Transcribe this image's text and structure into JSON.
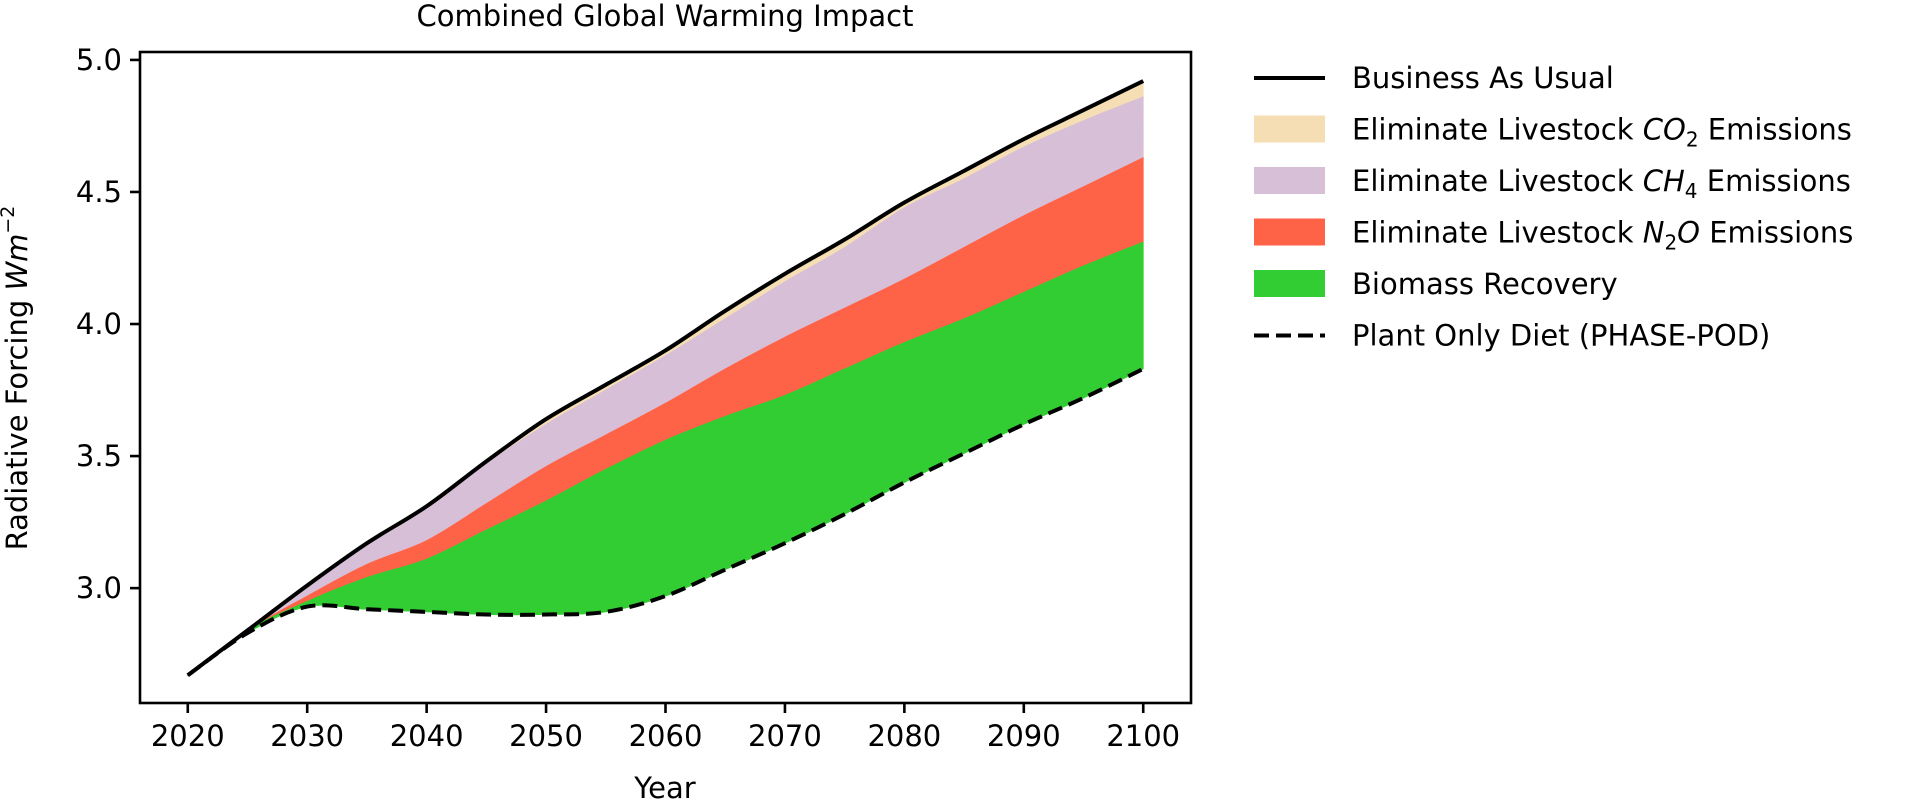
{
  "chart_data": {
    "type": "area",
    "title": "Combined Global Warming Impact",
    "xlabel": "Year",
    "ylabel": "Radiative Forcing Wm⁻²",
    "ylabel_parts": {
      "text": "Radiative Forcing ",
      "unit": "Wm",
      "exp": "−2"
    },
    "xlim": [
      2016,
      2104
    ],
    "ylim": [
      2.565,
      5.03
    ],
    "xticks": [
      2020,
      2030,
      2040,
      2050,
      2060,
      2070,
      2080,
      2090,
      2100
    ],
    "yticks": [
      3.0,
      3.5,
      4.0,
      4.5,
      5.0
    ],
    "xtick_labels": [
      "2020",
      "2030",
      "2040",
      "2050",
      "2060",
      "2070",
      "2080",
      "2090",
      "2100"
    ],
    "ytick_labels": [
      "3.0",
      "3.5",
      "4.0",
      "4.5",
      "5.0"
    ],
    "grid": false,
    "legend_position": "outside-right-top",
    "x": [
      2020,
      2025,
      2030,
      2035,
      2040,
      2045,
      2050,
      2055,
      2060,
      2065,
      2070,
      2075,
      2080,
      2085,
      2090,
      2095,
      2100
    ],
    "series": [
      {
        "name": "Business As Usual",
        "kind": "line",
        "style": "solid",
        "color": "#000000",
        "values": [
          2.67,
          2.84,
          3.01,
          3.17,
          3.31,
          3.48,
          3.64,
          3.77,
          3.9,
          4.05,
          4.19,
          4.32,
          4.46,
          4.58,
          4.7,
          4.81,
          4.92
        ]
      },
      {
        "name": "Eliminate Livestock CO2 Emissions",
        "kind": "band",
        "color": "#F5DEB3",
        "upper": "Business As Usual",
        "lower_values": [
          2.67,
          2.84,
          3.0,
          3.16,
          3.3,
          3.47,
          3.62,
          3.75,
          3.88,
          4.02,
          4.16,
          4.29,
          4.44,
          4.55,
          4.67,
          4.77,
          4.86
        ]
      },
      {
        "name": "Eliminate Livestock CH4 Emissions",
        "kind": "band",
        "color": "#D8BFD8",
        "lower_values": [
          2.67,
          2.84,
          2.97,
          3.09,
          3.18,
          3.32,
          3.46,
          3.58,
          3.7,
          3.83,
          3.95,
          4.06,
          4.17,
          4.29,
          4.41,
          4.52,
          4.63
        ]
      },
      {
        "name": "Eliminate Livestock N2O Emissions",
        "kind": "band",
        "color": "#FF6347",
        "lower_values": [
          2.67,
          2.84,
          2.95,
          3.04,
          3.11,
          3.22,
          3.33,
          3.45,
          3.56,
          3.65,
          3.73,
          3.83,
          3.93,
          4.02,
          4.12,
          4.22,
          4.31
        ]
      },
      {
        "name": "Biomass Recovery",
        "kind": "band",
        "color": "#32CD32",
        "lower": "Plant Only Diet (PHASE-POD)"
      },
      {
        "name": "Plant Only Diet (PHASE-POD)",
        "kind": "line",
        "style": "dashed",
        "color": "#000000",
        "values": [
          2.67,
          2.83,
          2.93,
          2.92,
          2.91,
          2.9,
          2.9,
          2.91,
          2.97,
          3.07,
          3.17,
          3.28,
          3.4,
          3.51,
          3.62,
          3.72,
          3.83
        ]
      }
    ]
  },
  "legend": [
    {
      "kind": "line",
      "style": "solid",
      "color": "#000000",
      "pre": "Business As Usual",
      "chem": "",
      "sub": "",
      "chem2": "",
      "post": ""
    },
    {
      "kind": "patch",
      "color": "#F5DEB3",
      "pre": "Eliminate Livestock ",
      "chem": "CO",
      "sub": "2",
      "chem2": "",
      "post": " Emissions"
    },
    {
      "kind": "patch",
      "color": "#D8BFD8",
      "pre": "Eliminate Livestock ",
      "chem": "CH",
      "sub": "4",
      "chem2": "",
      "post": " Emissions"
    },
    {
      "kind": "patch",
      "color": "#FF6347",
      "pre": "Eliminate Livestock ",
      "chem": "N",
      "sub": "2",
      "chem2": "O",
      "post": " Emissions"
    },
    {
      "kind": "patch",
      "color": "#32CD32",
      "pre": "Biomass Recovery",
      "chem": "",
      "sub": "",
      "chem2": "",
      "post": ""
    },
    {
      "kind": "line",
      "style": "dashed",
      "color": "#000000",
      "pre": "Plant Only Diet (PHASE-POD)",
      "chem": "",
      "sub": "",
      "chem2": "",
      "post": ""
    }
  ]
}
